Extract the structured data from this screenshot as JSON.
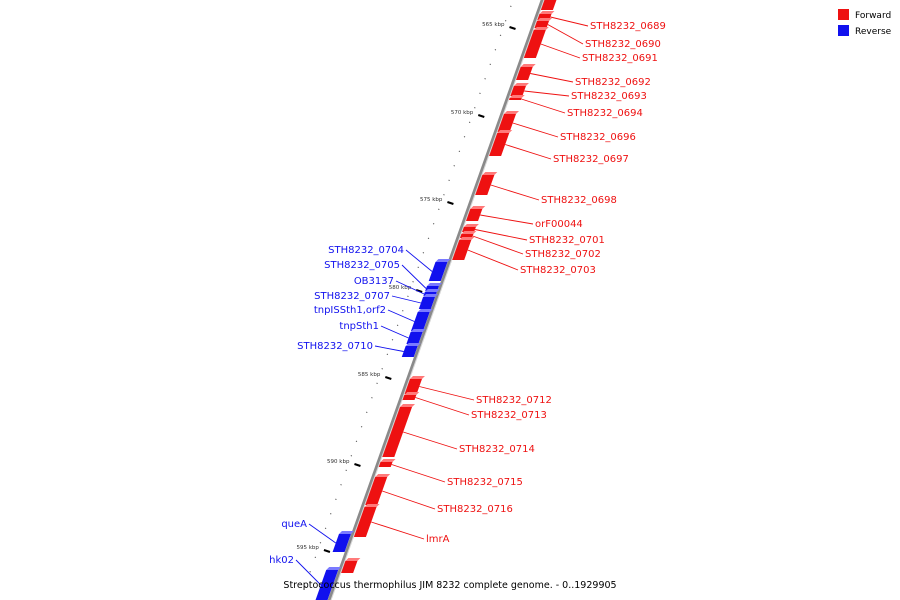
{
  "title": "Streptococcus thermophilus JIM 8232 complete genome. - 0..1929905",
  "legend": [
    {
      "label": "Forward",
      "color": "#ee1111"
    },
    {
      "label": "Reverse",
      "color": "#1111ee"
    }
  ],
  "colors": {
    "forward": "#ee1111",
    "reverse": "#1111ee",
    "backbone": "#8a8a8a"
  },
  "axis_ticks": [
    {
      "kbp": 565,
      "label": "565 kbp"
    },
    {
      "kbp": 570,
      "label": "570 kbp"
    },
    {
      "kbp": 575,
      "label": "575 kbp"
    },
    {
      "kbp": 580,
      "label": "580 kbp"
    },
    {
      "kbp": 585,
      "label": "585 kbp"
    },
    {
      "kbp": 590,
      "label": "590 kbp"
    },
    {
      "kbp": 595,
      "label": "595 kbp"
    }
  ],
  "genes_forward": [
    {
      "name": "STH8232_0689"
    },
    {
      "name": "STH8232_0690"
    },
    {
      "name": "STH8232_0691"
    },
    {
      "name": "STH8232_0692"
    },
    {
      "name": "STH8232_0693"
    },
    {
      "name": "STH8232_0694"
    },
    {
      "name": "STH8232_0696"
    },
    {
      "name": "STH8232_0697"
    },
    {
      "name": "STH8232_0698"
    },
    {
      "name": "orF00044"
    },
    {
      "name": "STH8232_0701"
    },
    {
      "name": "STH8232_0702"
    },
    {
      "name": "STH8232_0703"
    },
    {
      "name": "STH8232_0712"
    },
    {
      "name": "STH8232_0713"
    },
    {
      "name": "STH8232_0714"
    },
    {
      "name": "STH8232_0715"
    },
    {
      "name": "STH8232_0716"
    },
    {
      "name": "lmrA"
    }
  ],
  "genes_reverse": [
    {
      "name": "STH8232_0704"
    },
    {
      "name": "STH8232_0705"
    },
    {
      "name": "OB3137"
    },
    {
      "name": "STH8232_0707"
    },
    {
      "name": "tnpISSth1,orf2"
    },
    {
      "name": "tnpSth1"
    },
    {
      "name": "STH8232_0710"
    },
    {
      "name": "queA"
    },
    {
      "name": "hk02"
    }
  ]
}
